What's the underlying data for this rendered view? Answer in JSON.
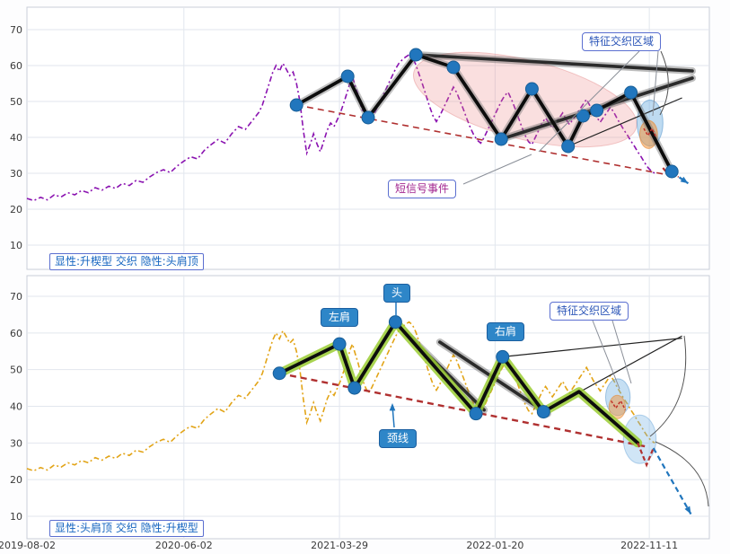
{
  "colors": {
    "price_purple": "#8a12b0",
    "price_orange": "#e2a417",
    "pivot_blue": "#2176bd",
    "trend_red": "#b03030",
    "glow_green": "#9acd32",
    "label_blue": "#2c56b8",
    "pink_zone": "rgba(236,130,130,0.26)"
  },
  "chart_data": {
    "type": "line",
    "x_axis": {
      "xlim": [
        0,
        100
      ],
      "ticks": [
        {
          "x": 0,
          "label": "2019-08-02"
        },
        {
          "x": 23,
          "label": "2020-06-02"
        },
        {
          "x": 45.8,
          "label": "2021-03-29"
        },
        {
          "x": 68.6,
          "label": "2022-01-20"
        },
        {
          "x": 91.2,
          "label": "2022-11-11"
        }
      ]
    },
    "y_axis": {
      "ylim": [
        3,
        76
      ],
      "ticks": [
        10,
        20,
        30,
        40,
        50,
        60,
        70
      ]
    },
    "price_series": {
      "points": [
        [
          0,
          23
        ],
        [
          1,
          22.4
        ],
        [
          2,
          23.3
        ],
        [
          3,
          22.6
        ],
        [
          4,
          24
        ],
        [
          5,
          23.4
        ],
        [
          6,
          24.6
        ],
        [
          7,
          24
        ],
        [
          8,
          25.2
        ],
        [
          9,
          24.6
        ],
        [
          10,
          26
        ],
        [
          11,
          25.3
        ],
        [
          12,
          26.4
        ],
        [
          13,
          25.8
        ],
        [
          14,
          27.2
        ],
        [
          15,
          26.6
        ],
        [
          16,
          28
        ],
        [
          17,
          27.5
        ],
        [
          18,
          29
        ],
        [
          19,
          30.2
        ],
        [
          20,
          31
        ],
        [
          21,
          30.2
        ],
        [
          22,
          32
        ],
        [
          23,
          33.4
        ],
        [
          24,
          34.6
        ],
        [
          25,
          34
        ],
        [
          26,
          36.4
        ],
        [
          27,
          38
        ],
        [
          28,
          39.4
        ],
        [
          29,
          38.4
        ],
        [
          30,
          41
        ],
        [
          31,
          43
        ],
        [
          32,
          42.2
        ],
        [
          33,
          44.6
        ],
        [
          34,
          47
        ],
        [
          34.5,
          49
        ],
        [
          35,
          52
        ],
        [
          35.5,
          55
        ],
        [
          36,
          58
        ],
        [
          36.5,
          60
        ],
        [
          37,
          58.4
        ],
        [
          37.5,
          60.6
        ],
        [
          38,
          59
        ],
        [
          38.5,
          57.2
        ],
        [
          39,
          58.2
        ],
        [
          39.5,
          55
        ],
        [
          40,
          50
        ],
        [
          40.5,
          42
        ],
        [
          41,
          35.6
        ],
        [
          41.5,
          38
        ],
        [
          42,
          41
        ],
        [
          42.5,
          38.2
        ],
        [
          43,
          36
        ],
        [
          43.5,
          39
        ],
        [
          44,
          42
        ],
        [
          44.5,
          44
        ],
        [
          45,
          43
        ],
        [
          45.5,
          45
        ],
        [
          46,
          47.2
        ],
        [
          46.5,
          50
        ],
        [
          47,
          53
        ],
        [
          47.4,
          55.6
        ],
        [
          47.7,
          57
        ],
        [
          48,
          55
        ],
        [
          48.5,
          52
        ],
        [
          49,
          48.4
        ],
        [
          49.5,
          45.6
        ],
        [
          50,
          43.6
        ],
        [
          50.5,
          45
        ],
        [
          51,
          47
        ],
        [
          51.5,
          49
        ],
        [
          52,
          51
        ],
        [
          52.5,
          53
        ],
        [
          53,
          55
        ],
        [
          53.5,
          57
        ],
        [
          54,
          59
        ],
        [
          54.5,
          60.6
        ],
        [
          55,
          61.6
        ],
        [
          55.5,
          62.4
        ],
        [
          56,
          63
        ],
        [
          56.5,
          62.2
        ],
        [
          57,
          60.2
        ],
        [
          57.5,
          57.4
        ],
        [
          58,
          54.6
        ],
        [
          58.5,
          51.6
        ],
        [
          59,
          48.6
        ],
        [
          59.5,
          46
        ],
        [
          60,
          44.4
        ],
        [
          60.5,
          46
        ],
        [
          61,
          48
        ],
        [
          61.5,
          50
        ],
        [
          62,
          52
        ],
        [
          62.5,
          54
        ],
        [
          63,
          52.4
        ],
        [
          63.5,
          50
        ],
        [
          64,
          47.6
        ],
        [
          64.5,
          45
        ],
        [
          65,
          42.6
        ],
        [
          65.5,
          40.6
        ],
        [
          66,
          39.2
        ],
        [
          66.5,
          38.4
        ],
        [
          67,
          40
        ],
        [
          67.5,
          42
        ],
        [
          68,
          44
        ],
        [
          68.5,
          46
        ],
        [
          69,
          48
        ],
        [
          69.5,
          50
        ],
        [
          70,
          51.6
        ],
        [
          70.5,
          52.6
        ],
        [
          71,
          50.6
        ],
        [
          71.5,
          48.2
        ],
        [
          72,
          45.6
        ],
        [
          72.5,
          43
        ],
        [
          73,
          40.6
        ],
        [
          73.5,
          38.8
        ],
        [
          74,
          38
        ],
        [
          74.5,
          40
        ],
        [
          75,
          42
        ],
        [
          75.5,
          44
        ],
        [
          76,
          45.4
        ],
        [
          76.5,
          44
        ],
        [
          77,
          42.6
        ],
        [
          77.5,
          44
        ],
        [
          78,
          45.4
        ],
        [
          78.5,
          46.8
        ],
        [
          79,
          45
        ],
        [
          79.5,
          43.6
        ],
        [
          80,
          45
        ],
        [
          80.5,
          46.4
        ],
        [
          81,
          47.8
        ],
        [
          81.5,
          49.2
        ],
        [
          82,
          50.6
        ],
        [
          82.5,
          48.8
        ],
        [
          83,
          47
        ],
        [
          83.5,
          45.6
        ],
        [
          84,
          44.2
        ],
        [
          84.5,
          45.6
        ],
        [
          85,
          47
        ],
        [
          85.5,
          48.4
        ],
        [
          86,
          47
        ],
        [
          86.5,
          45.2
        ],
        [
          87,
          43.6
        ],
        [
          87.5,
          42
        ],
        [
          88,
          40.6
        ],
        [
          88.5,
          39
        ],
        [
          89,
          37.6
        ],
        [
          89.5,
          36
        ],
        [
          90,
          34.6
        ],
        [
          90.5,
          33
        ],
        [
          91,
          31.6
        ],
        [
          91.5,
          30.6
        ],
        [
          92,
          30
        ]
      ]
    },
    "panels": [
      {
        "name": "explicit-rising-wedge-implicit-head-shoulders",
        "caption": "显性:升楔型 交织 隐性:头肩顶",
        "labels": {
          "interweave_zone": "特征交织区域",
          "short_signal": "短信号事件"
        },
        "price_color": "#8a12b0",
        "pivots": [
          [
            39.5,
            49
          ],
          [
            47,
            57
          ],
          [
            50,
            45.5
          ],
          [
            57,
            63
          ],
          [
            62.5,
            59.5
          ],
          [
            69.5,
            39.5
          ],
          [
            74,
            53.5
          ],
          [
            79.3,
            37.5
          ],
          [
            81.5,
            46
          ],
          [
            83.5,
            47.5
          ],
          [
            88.5,
            52.5
          ],
          [
            94.5,
            30.5
          ]
        ],
        "zigzag": [
          [
            39.5,
            49
          ],
          [
            47,
            57
          ],
          [
            50,
            45.5
          ],
          [
            57,
            63
          ],
          [
            62.5,
            59.5
          ],
          [
            69.5,
            39.5
          ],
          [
            74,
            53.5
          ],
          [
            79.3,
            37.5
          ],
          [
            81.5,
            46
          ],
          [
            83.5,
            47.5
          ],
          [
            88.5,
            52.5
          ],
          [
            94.5,
            30.5
          ]
        ],
        "zigzag_glow": null,
        "trendline": [
          [
            39.5,
            49
          ],
          [
            95.5,
            29
          ]
        ],
        "thick_lines": [
          [
            [
              57,
              63
            ],
            [
              97.5,
              58.5
            ]
          ],
          [
            [
              69.5,
              39.5
            ],
            [
              97.5,
              56.5
            ]
          ]
        ],
        "thin_lines": [
          [
            [
              79.3,
              37.5
            ],
            [
              96,
              51
            ]
          ]
        ],
        "ellipses": [
          {
            "cx": 73,
            "cy": 50.5,
            "rx": 16.8,
            "ry": 11,
            "rot": 14,
            "fill": "rgba(236,130,130,0.26)",
            "stroke": "rgba(220,110,110,0.35)"
          },
          {
            "cx": 91.3,
            "cy": 44,
            "rx": 1.9,
            "ry": 6.4,
            "rot": 0,
            "fill": "rgba(110,175,225,0.45)",
            "stroke": "rgba(70,140,200,0.5)"
          },
          {
            "cx": 91.1,
            "cy": 40.8,
            "rx": 1.3,
            "ry": 3.9,
            "rot": 0,
            "fill": "rgba(242,150,60,0.55)",
            "stroke": "rgba(230,130,40,0.6)"
          }
        ],
        "mini_zigzag": [
          [
            90.4,
            42.5
          ],
          [
            91,
            40.5
          ],
          [
            91.6,
            42.5
          ],
          [
            92.2,
            40
          ]
        ],
        "red_v": [
          [
            93.2,
            31.5
          ],
          [
            94.2,
            29.2
          ],
          [
            95,
            31
          ]
        ],
        "blue_arrow": [
          [
            94.5,
            30.3
          ],
          [
            96.9,
            27.2
          ]
        ]
      },
      {
        "name": "explicit-head-shoulders-implicit-rising-wedge",
        "caption": "显性:头肩顶 交织 隐性:升楔型",
        "labels": {
          "left_shoulder": "左肩",
          "head": "头",
          "right_shoulder": "右肩",
          "neckline": "颈线",
          "interweave_zone": "特征交织区域"
        },
        "price_color": "#e2a417",
        "pivots": [
          [
            37,
            49
          ],
          [
            45.8,
            57
          ],
          [
            48,
            45
          ],
          [
            54,
            63
          ],
          [
            65.8,
            38
          ],
          [
            69.7,
            53.5
          ],
          [
            75.7,
            38.5
          ]
        ],
        "zigzag": [
          [
            37,
            49
          ],
          [
            45.8,
            57
          ],
          [
            48,
            45
          ],
          [
            54,
            63
          ],
          [
            65.8,
            38
          ],
          [
            69.7,
            53.5
          ],
          [
            75.7,
            38.5
          ],
          [
            80.9,
            44
          ],
          [
            89.5,
            30
          ]
        ],
        "zigzag_glow": "rgba(154,205,50,0.85)",
        "trendline": [
          [
            37,
            49
          ],
          [
            90.8,
            29
          ]
        ],
        "thick_lines": [
          [
            [
              55.5,
              60
            ],
            [
              67,
              39
            ]
          ],
          [
            [
              60.5,
              57.5
            ],
            [
              76.3,
              38
            ]
          ]
        ],
        "thin_lines": [
          [
            [
              69.7,
              53.5
            ],
            [
              96,
              58.6
            ]
          ],
          [
            [
              75.7,
              38.5
            ],
            [
              96,
              59.2
            ]
          ]
        ],
        "ellipses": [
          {
            "cx": 86.6,
            "cy": 42.5,
            "rx": 1.8,
            "ry": 5,
            "rot": 0,
            "fill": "rgba(110,175,225,0.4)",
            "stroke": "rgba(70,140,200,0.45)"
          },
          {
            "cx": 86.5,
            "cy": 39.8,
            "rx": 1.2,
            "ry": 3.2,
            "rot": 0,
            "fill": "rgba(242,150,60,0.5)",
            "stroke": "rgba(230,130,40,0.55)"
          },
          {
            "cx": 89.8,
            "cy": 31,
            "rx": 2.4,
            "ry": 6.6,
            "rot": 0,
            "fill": "rgba(120,180,230,0.35)",
            "stroke": "rgba(80,150,210,0.4)"
          }
        ],
        "mini_zigzag": [
          [
            85.6,
            41.5
          ],
          [
            86.3,
            39.5
          ],
          [
            87,
            41.5
          ],
          [
            87.7,
            39
          ]
        ],
        "red_v": [
          [
            89.5,
            30
          ],
          [
            90.8,
            24
          ],
          [
            91.8,
            28.6
          ]
        ],
        "blue_arrow": [
          [
            91.8,
            28.6
          ],
          [
            97.3,
            10.6
          ]
        ]
      }
    ]
  }
}
